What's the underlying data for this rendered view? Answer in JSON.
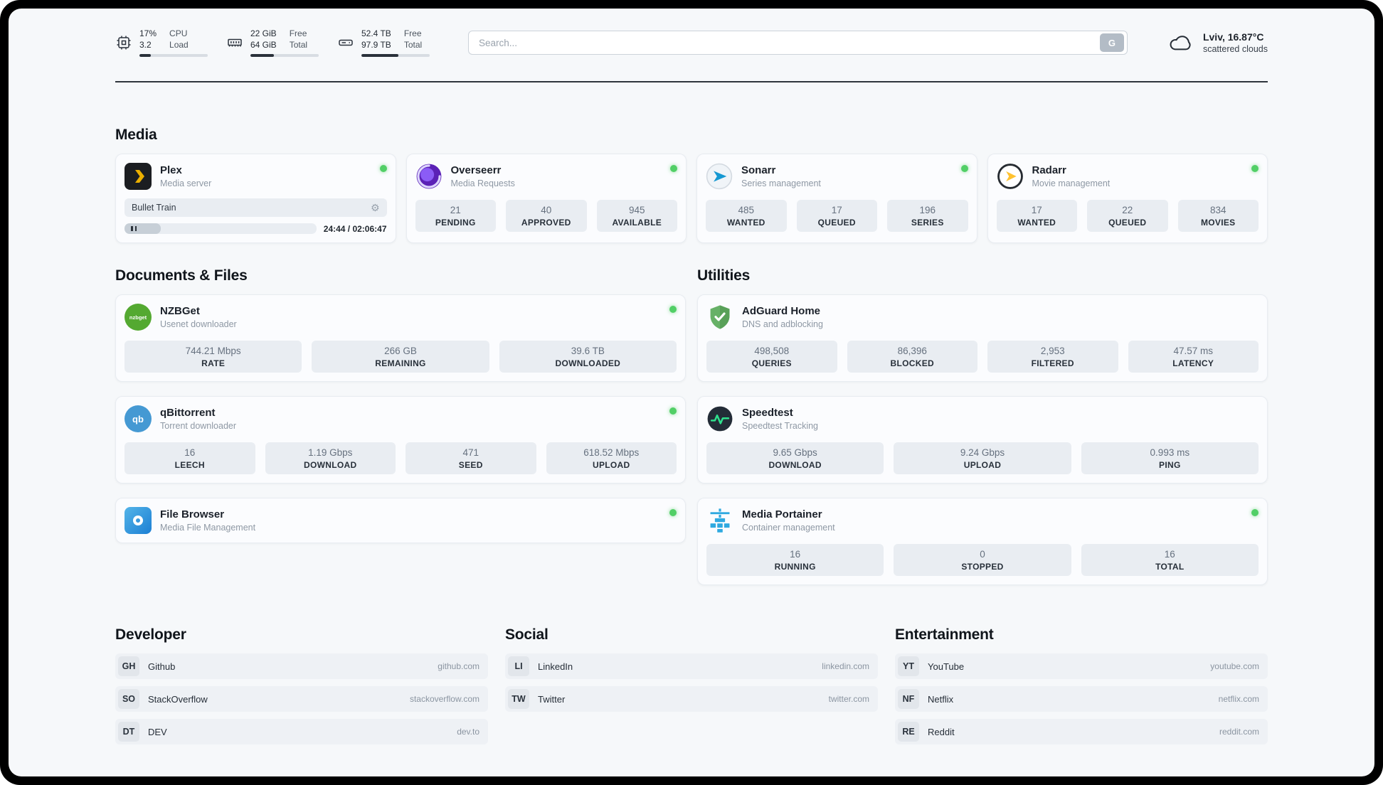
{
  "topbar": {
    "cpu": {
      "value1": "17%",
      "value2": "3.2",
      "label1": "CPU",
      "label2": "Load",
      "progress": 17
    },
    "ram": {
      "value1": "22 GiB",
      "value2": "64 GiB",
      "label1": "Free",
      "label2": "Total",
      "progress": 34
    },
    "disk": {
      "value1": "52.4 TB",
      "value2": "97.9 TB",
      "label1": "Free",
      "label2": "Total",
      "progress": 54
    },
    "search": {
      "placeholder": "Search...",
      "button_label": "G"
    },
    "weather": {
      "location": "Lviv, 16.87°C",
      "condition": "scattered clouds"
    }
  },
  "icons": {
    "gear": "⚙"
  },
  "colors": {
    "status_online": "#51cf66",
    "stat_box": "#e9edf2",
    "accent_plex": "#ebaf00"
  },
  "media": {
    "heading": "Media",
    "plex": {
      "title": "Plex",
      "subtitle": "Media server",
      "online": true,
      "now_playing": "Bullet Train",
      "time": "24:44 / 02:06:47",
      "progress": 19
    },
    "cards": [
      {
        "title": "Overseerr",
        "subtitle": "Media Requests",
        "online": true,
        "stats": [
          {
            "value": "21",
            "label": "PENDING"
          },
          {
            "value": "40",
            "label": "APPROVED"
          },
          {
            "value": "945",
            "label": "AVAILABLE"
          }
        ]
      },
      {
        "title": "Sonarr",
        "subtitle": "Series management",
        "online": true,
        "stats": [
          {
            "value": "485",
            "label": "WANTED"
          },
          {
            "value": "17",
            "label": "QUEUED"
          },
          {
            "value": "196",
            "label": "SERIES"
          }
        ]
      },
      {
        "title": "Radarr",
        "subtitle": "Movie management",
        "online": true,
        "stats": [
          {
            "value": "17",
            "label": "WANTED"
          },
          {
            "value": "22",
            "label": "QUEUED"
          },
          {
            "value": "834",
            "label": "MOVIES"
          }
        ]
      }
    ]
  },
  "documents": {
    "heading": "Documents & Files",
    "cards": [
      {
        "title": "NZBGet",
        "subtitle": "Usenet downloader",
        "online": true,
        "icon_label": "nzbget",
        "stats": [
          {
            "value": "744.21 Mbps",
            "label": "RATE"
          },
          {
            "value": "266 GB",
            "label": "REMAINING"
          },
          {
            "value": "39.6 TB",
            "label": "DOWNLOADED"
          }
        ]
      },
      {
        "title": "qBittorrent",
        "subtitle": "Torrent downloader",
        "online": true,
        "icon_label": "qb",
        "stats": [
          {
            "value": "16",
            "label": "LEECH"
          },
          {
            "value": "1.19 Gbps",
            "label": "DOWNLOAD"
          },
          {
            "value": "471",
            "label": "SEED"
          },
          {
            "value": "618.52 Mbps",
            "label": "UPLOAD"
          }
        ]
      },
      {
        "title": "File Browser",
        "subtitle": "Media File Management",
        "online": true,
        "stats": []
      }
    ]
  },
  "utilities": {
    "heading": "Utilities",
    "cards": [
      {
        "title": "AdGuard Home",
        "subtitle": "DNS and adblocking",
        "online": false,
        "stats": [
          {
            "value": "498,508",
            "label": "QUERIES"
          },
          {
            "value": "86,396",
            "label": "BLOCKED"
          },
          {
            "value": "2,953",
            "label": "FILTERED"
          },
          {
            "value": "47.57 ms",
            "label": "LATENCY"
          }
        ]
      },
      {
        "title": "Speedtest",
        "subtitle": "Speedtest Tracking",
        "online": false,
        "stats": [
          {
            "value": "9.65 Gbps",
            "label": "DOWNLOAD"
          },
          {
            "value": "9.24 Gbps",
            "label": "UPLOAD"
          },
          {
            "value": "0.993 ms",
            "label": "PING"
          }
        ]
      },
      {
        "title": "Media Portainer",
        "subtitle": "Container management",
        "online": true,
        "stats": [
          {
            "value": "16",
            "label": "RUNNING"
          },
          {
            "value": "0",
            "label": "STOPPED"
          },
          {
            "value": "16",
            "label": "TOTAL"
          }
        ]
      }
    ]
  },
  "bookmarks": {
    "developer": {
      "heading": "Developer",
      "links": [
        {
          "abbr": "GH",
          "name": "Github",
          "domain": "github.com"
        },
        {
          "abbr": "SO",
          "name": "StackOverflow",
          "domain": "stackoverflow.com"
        },
        {
          "abbr": "DT",
          "name": "DEV",
          "domain": "dev.to"
        }
      ]
    },
    "social": {
      "heading": "Social",
      "links": [
        {
          "abbr": "LI",
          "name": "LinkedIn",
          "domain": "linkedin.com"
        },
        {
          "abbr": "TW",
          "name": "Twitter",
          "domain": "twitter.com"
        }
      ]
    },
    "entertainment": {
      "heading": "Entertainment",
      "links": [
        {
          "abbr": "YT",
          "name": "YouTube",
          "domain": "youtube.com"
        },
        {
          "abbr": "NF",
          "name": "Netflix",
          "domain": "netflix.com"
        },
        {
          "abbr": "RE",
          "name": "Reddit",
          "domain": "reddit.com"
        }
      ]
    }
  }
}
